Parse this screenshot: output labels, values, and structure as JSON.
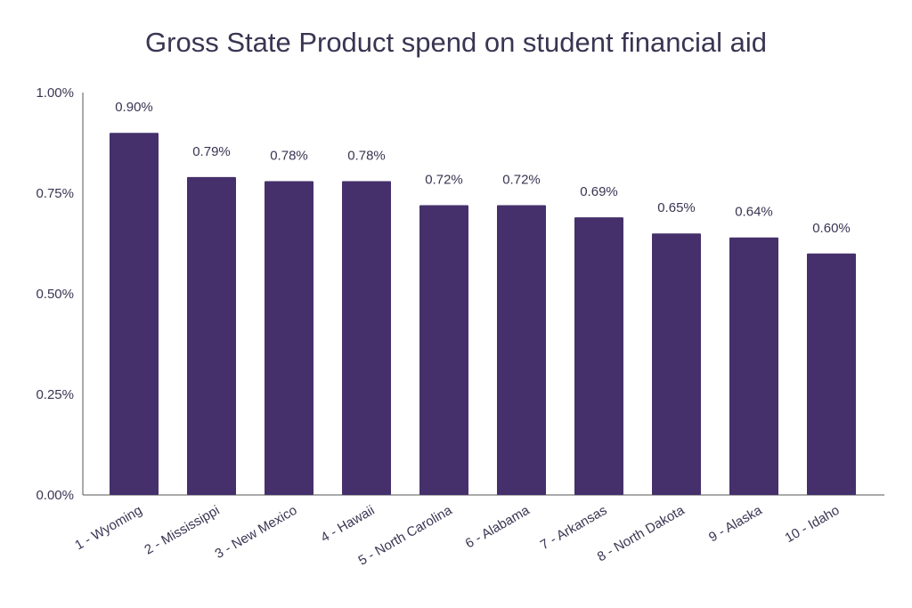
{
  "chart_data": {
    "type": "bar",
    "title": "Gross State Product spend on student financial aid",
    "categories": [
      "1 - Wyoming",
      "2 - Mississippi",
      "3 - New Mexico",
      "4 - Hawaii",
      "5 - North Carolina",
      "6 - Alabama",
      "7 - Arkansas",
      "8 - North Dakota",
      "9 - Alaska",
      "10 - Idaho"
    ],
    "values": [
      0.9,
      0.79,
      0.78,
      0.78,
      0.72,
      0.72,
      0.69,
      0.65,
      0.64,
      0.6
    ],
    "value_labels": [
      "0.90%",
      "0.79%",
      "0.78%",
      "0.78%",
      "0.72%",
      "0.72%",
      "0.69%",
      "0.65%",
      "0.64%",
      "0.60%"
    ],
    "ylim": [
      0,
      1.0
    ],
    "yticks": [
      0,
      0.25,
      0.5,
      0.75,
      1.0
    ],
    "ytick_labels": [
      "0.00%",
      "0.25%",
      "0.50%",
      "0.75%",
      "1.00%"
    ],
    "xlabel": "",
    "ylabel": "",
    "grid": false,
    "bar_color": "#45306b",
    "text_color": "#3a3552",
    "axis_color": "#555555"
  }
}
